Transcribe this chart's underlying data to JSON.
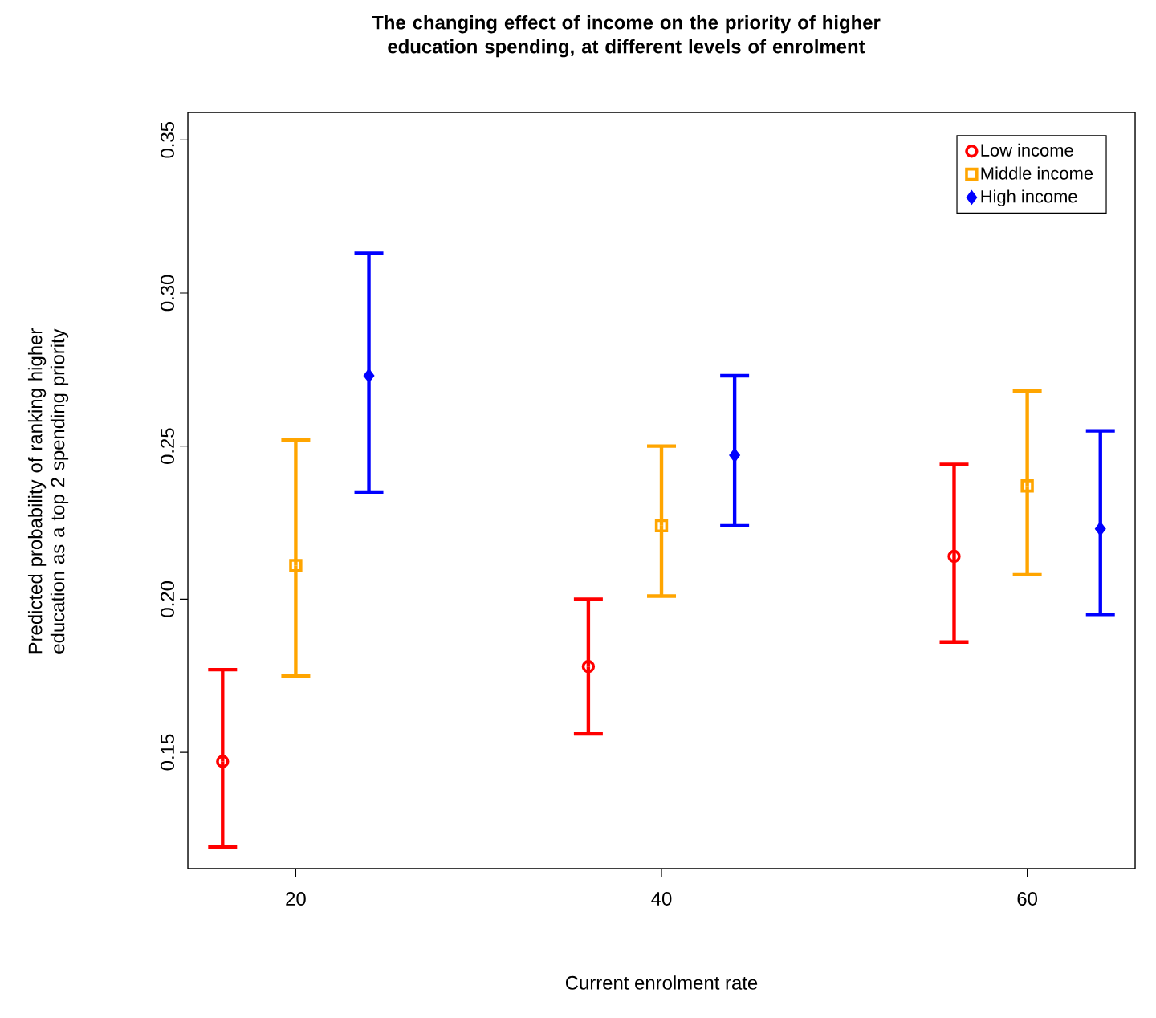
{
  "chart_data": {
    "type": "scatter",
    "title": "The changing effect of income on the priority of higher education spending, at different levels of enrolment",
    "xlabel": "Current enrolment rate",
    "ylabel": "Predicted probability of ranking higher education as a top 2 spending priority",
    "xlim": [
      14.1,
      65.9
    ],
    "xticks": [
      20,
      40,
      60
    ],
    "ylim": [
      0.112,
      0.359
    ],
    "yticks": [
      0.15,
      {
        "value": 0.2,
        "label": "0.20"
      },
      0.25,
      {
        "value": 0.3,
        "label": "0.30"
      },
      0.35
    ],
    "legend": "top right",
    "grid": false,
    "series": [
      {
        "name": "Low income",
        "color": "#ff0000",
        "marker": "circle",
        "x": [
          16,
          36,
          56
        ],
        "values": [
          0.147,
          0.178,
          0.214
        ],
        "errors": [
          [
            0.119,
            0.177
          ],
          [
            0.156,
            0.2
          ],
          [
            0.186,
            0.244
          ]
        ]
      },
      {
        "name": "Middle income",
        "color": "#ffa500",
        "marker": "square",
        "x": [
          20,
          40,
          60
        ],
        "values": [
          0.211,
          0.224,
          0.237
        ],
        "errors": [
          [
            0.175,
            0.252
          ],
          [
            0.201,
            0.25
          ],
          [
            0.208,
            0.268
          ]
        ]
      },
      {
        "name": "High income",
        "color": "#0000ff",
        "marker": "diamond",
        "x": [
          24,
          44,
          64
        ],
        "values": [
          0.273,
          0.247,
          0.223
        ],
        "errors": [
          [
            0.235,
            0.313
          ],
          [
            0.224,
            0.273
          ],
          [
            0.195,
            0.255
          ]
        ]
      }
    ]
  }
}
